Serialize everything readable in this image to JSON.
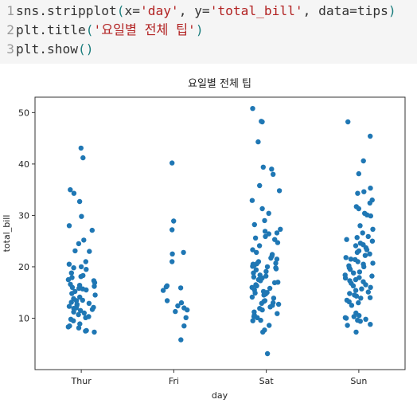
{
  "code_cell": {
    "lines": [
      {
        "number": "1",
        "func": "sns.stripplot",
        "open": "(",
        "arg1_key": "x=",
        "arg1_val": "'day'",
        "sep1": ", ",
        "arg2_key": "y=",
        "arg2_val": "'total_bill'",
        "sep2": ", ",
        "arg3": "data=tips",
        "close": ")"
      },
      {
        "number": "2",
        "func": "plt.title",
        "open": "(",
        "arg1_val": "'요일별 전체 팁'",
        "close": ")"
      },
      {
        "number": "3",
        "func": "plt.show",
        "open": "(",
        "close": ")"
      }
    ]
  },
  "chart_data": {
    "type": "scatter",
    "title": "요일별 전체 팁",
    "xlabel": "day",
    "ylabel": "total_bill",
    "categories": [
      "Thur",
      "Fri",
      "Sat",
      "Sun"
    ],
    "ylim": [
      0,
      53
    ],
    "yticks": [
      10,
      20,
      30,
      40,
      50
    ],
    "grid": false,
    "legend": "none",
    "point_color": "#1f77b4",
    "series": [
      {
        "values": [
          43.1,
          41.2,
          35.0,
          34.3,
          32.7,
          29.8,
          28.0,
          27.1,
          25.2,
          24.5,
          23.1,
          23.0,
          21.0,
          20.5,
          20.0,
          19.8,
          19.5,
          18.8,
          18.3,
          18.1,
          17.9,
          17.5,
          17.3,
          16.9,
          16.6,
          16.4,
          16.2,
          16.0,
          15.8,
          15.7,
          15.5,
          15.2,
          14.8,
          14.5,
          14.1,
          13.8,
          13.5,
          13.4,
          13.1,
          12.9,
          12.7,
          12.5,
          12.3,
          12.1,
          11.9,
          11.7,
          11.5,
          11.2,
          11.0,
          10.7,
          10.3,
          10.1,
          9.8,
          9.5,
          8.9,
          8.5,
          8.3,
          8.1,
          7.6,
          7.5,
          7.3,
          12.0
        ]
      },
      {
        "values": [
          40.2,
          28.9,
          27.2,
          22.8,
          22.5,
          21.0,
          16.3,
          16.1,
          15.9,
          15.4,
          13.4,
          13.0,
          12.0,
          11.6,
          10.1,
          8.5,
          5.8,
          12.4,
          11.3
        ]
      },
      {
        "values": [
          50.8,
          48.3,
          48.2,
          44.3,
          39.4,
          39.0,
          38.0,
          35.8,
          34.8,
          32.9,
          31.3,
          30.4,
          29.0,
          28.2,
          27.3,
          26.9,
          26.6,
          26.4,
          25.9,
          25.6,
          25.3,
          24.7,
          24.1,
          23.3,
          22.8,
          22.4,
          22.1,
          21.7,
          21.5,
          21.0,
          20.7,
          20.6,
          20.5,
          20.3,
          20.1,
          20.0,
          19.8,
          19.6,
          19.4,
          19.1,
          18.8,
          18.4,
          18.2,
          18.0,
          17.8,
          17.5,
          17.3,
          16.9,
          16.5,
          16.3,
          16.0,
          15.8,
          15.5,
          15.2,
          14.9,
          14.7,
          14.5,
          14.1,
          13.9,
          13.4,
          13.0,
          12.9,
          12.7,
          12.5,
          12.2,
          11.9,
          11.6,
          11.2,
          10.9,
          10.6,
          10.3,
          10.1,
          9.6,
          9.5,
          8.6,
          7.7,
          7.3,
          3.1,
          17.0,
          15.0,
          13.3
        ]
      },
      {
        "values": [
          48.2,
          45.4,
          40.6,
          38.1,
          35.3,
          34.6,
          34.3,
          33.0,
          32.4,
          31.7,
          31.3,
          30.4,
          30.1,
          29.9,
          28.0,
          27.3,
          26.6,
          25.9,
          25.7,
          25.3,
          25.0,
          24.6,
          24.3,
          24.1,
          23.7,
          23.3,
          23.1,
          22.8,
          22.5,
          22.2,
          21.8,
          21.4,
          21.0,
          20.7,
          20.5,
          20.2,
          20.0,
          19.8,
          19.5,
          19.0,
          18.8,
          18.4,
          18.2,
          17.9,
          17.8,
          17.5,
          17.3,
          17.1,
          16.8,
          16.5,
          16.3,
          16.0,
          15.7,
          15.4,
          15.1,
          14.8,
          14.5,
          14.3,
          14.0,
          13.9,
          13.5,
          13.2,
          13.0,
          12.5,
          11.0,
          10.5,
          10.3,
          10.1,
          10.0,
          9.8,
          9.6,
          9.4,
          8.8,
          8.6,
          7.3,
          21.5
        ]
      }
    ]
  }
}
